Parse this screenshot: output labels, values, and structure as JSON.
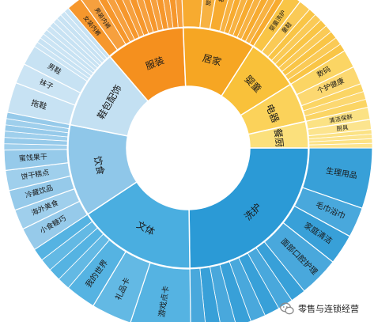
{
  "chart_data": {
    "type": "sunburst",
    "title": "",
    "inner": [
      {
        "name": "洗护",
        "value": 28,
        "color": "#2b9ad6"
      },
      {
        "name": "文体",
        "value": 18,
        "color": "#4aaee0"
      },
      {
        "name": "饮食",
        "value": 14,
        "color": "#8fc7e9"
      },
      {
        "name": "鞋包配饰",
        "value": 12,
        "color": "#c3e0f2"
      },
      {
        "name": "服装",
        "value": 12,
        "color": "#f5901e"
      },
      {
        "name": "居家",
        "value": 11,
        "color": "#f6a623"
      },
      {
        "name": "婴童",
        "value": 8,
        "color": "#f9c13a"
      },
      {
        "name": "电器",
        "value": 6,
        "color": "#fbd25a"
      },
      {
        "name": "餐厨",
        "value": 4,
        "color": "#fbe07c"
      }
    ],
    "outer": [
      {
        "parent": "洗护",
        "items": [
          {
            "name": "生理用品",
            "value": 6
          },
          {
            "name": "毛巾浴巾",
            "value": 3
          },
          {
            "name": "家庭清洁",
            "value": 3
          },
          {
            "name": "面部口腔护理",
            "value": 4
          },
          {
            "name": "",
            "value": 12,
            "lines": 8
          }
        ]
      },
      {
        "parent": "文体",
        "items": [
          {
            "name": "游戏点卡",
            "value": 6
          },
          {
            "name": "礼品卡",
            "value": 4
          },
          {
            "name": "我的世界",
            "value": 3
          },
          {
            "name": "",
            "value": 5,
            "lines": 4
          }
        ]
      },
      {
        "parent": "饮食",
        "items": [
          {
            "name": "小食糖巧",
            "value": 2.3
          },
          {
            "name": "海外美食",
            "value": 2
          },
          {
            "name": "冷藏饮品",
            "value": 2
          },
          {
            "name": "饼干糕点",
            "value": 2
          },
          {
            "name": "蜜饯果干",
            "value": 2
          },
          {
            "name": "",
            "value": 3.7,
            "lines": 6
          }
        ]
      },
      {
        "parent": "鞋包配饰",
        "items": [
          {
            "name": "拖鞋",
            "value": 3
          },
          {
            "name": "袜子",
            "value": 2
          },
          {
            "name": "男鞋",
            "value": 2
          },
          {
            "name": "",
            "value": 5,
            "lines": 10
          }
        ]
      },
      {
        "parent": "服装",
        "items": [
          {
            "name": "女装内裤",
            "value": 1.5
          },
          {
            "name": "男装内裤",
            "value": 1.5
          },
          {
            "name": "",
            "value": 9,
            "lines": 12
          }
        ]
      },
      {
        "parent": "居家",
        "items": [
          {
            "name": "收纳",
            "value": 2.5
          },
          {
            "name": "旅行用品",
            "value": 1.5
          },
          {
            "name": "被枕",
            "value": 1.5
          },
          {
            "name": "",
            "value": 5.5,
            "lines": 8
          }
        ]
      },
      {
        "parent": "婴童",
        "items": [
          {
            "name": "婴童洗护",
            "value": 1.5
          },
          {
            "name": "童鞋",
            "value": 1.2
          },
          {
            "name": "",
            "value": 5.3,
            "lines": 7
          }
        ]
      },
      {
        "parent": "电器",
        "items": [
          {
            "name": "数码",
            "value": 1.8
          },
          {
            "name": "个护健康",
            "value": 1.8
          },
          {
            "name": "",
            "value": 2.4,
            "lines": 3
          }
        ]
      },
      {
        "parent": "餐厨",
        "items": [
          {
            "name": "清洁保鲜",
            "value": 1.2
          },
          {
            "name": "厨具",
            "value": 1.0
          },
          {
            "name": "",
            "value": 1.8,
            "lines": 4
          }
        ]
      }
    ]
  },
  "watermark": {
    "text": "零售与连锁经营",
    "icon": "chat-bubble-icon",
    "icon_color": "#8a8a8a"
  }
}
